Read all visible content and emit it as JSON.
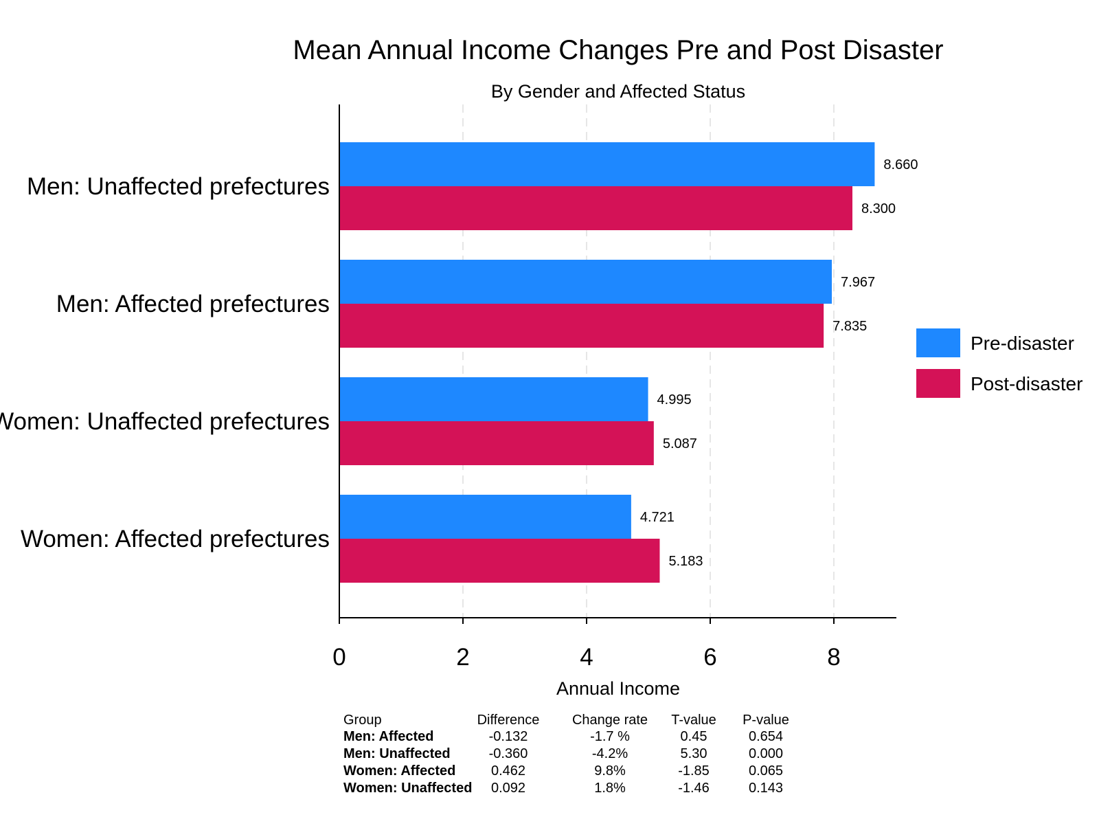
{
  "chart_data": {
    "type": "bar",
    "orientation": "horizontal",
    "title": "Mean Annual Income Changes Pre and Post Disaster",
    "subtitle": "By Gender and Affected Status",
    "xlabel": "Annual Income",
    "ylabel": "",
    "xlim": [
      0,
      9
    ],
    "xticks": [
      "0",
      "2",
      "4",
      "6",
      "8"
    ],
    "grid": "vertical dashed",
    "legend_position": "right",
    "categories": [
      "Men: Unaffected prefectures",
      "Men: Affected prefectures",
      "Women: Unaffected prefectures",
      "Women: Affected prefectures"
    ],
    "series": [
      {
        "name": "Pre-disaster",
        "color": "#1e88ff",
        "values": [
          8.66,
          7.967,
          4.995,
          4.721
        ],
        "labels": [
          "8.660",
          "7.967",
          "4.995",
          "4.721"
        ]
      },
      {
        "name": "Post-disaster",
        "color": "#d41257",
        "values": [
          8.3,
          7.835,
          5.087,
          5.183
        ],
        "labels": [
          "8.300",
          "7.835",
          "5.087",
          "5.183"
        ]
      }
    ],
    "table": {
      "headers": [
        "Group",
        "Difference",
        "Change rate",
        "T-value",
        "P-value"
      ],
      "rows": [
        [
          "Men: Affected",
          "-0.132",
          "-1.7 %",
          "0.45",
          "0.654"
        ],
        [
          "Men: Unaffected",
          "-0.360",
          "-4.2%",
          "5.30",
          "0.000"
        ],
        [
          "Women: Affected",
          "0.462",
          "9.8%",
          "-1.85",
          "0.065"
        ],
        [
          "Women: Unaffected",
          "0.092",
          "1.8%",
          "-1.46",
          "0.143"
        ]
      ]
    }
  }
}
